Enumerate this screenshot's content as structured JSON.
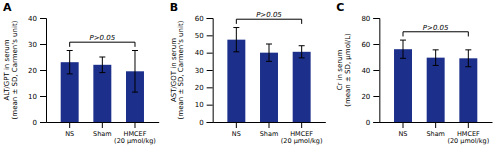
{
  "chart_data": [
    {
      "type": "bar",
      "title": "A",
      "ylabel": "ALT/GPT in serum\n(mean ± SD, Carmen's unit)",
      "categories": [
        "NS",
        "Sham",
        "HMCEF\n(20 μmol/kg)"
      ],
      "values": [
        23.0,
        22.0,
        19.5
      ],
      "errors": [
        4.5,
        3.0,
        8.0
      ],
      "color": "#1c2f8a",
      "ylim": [
        0,
        40
      ],
      "yticks": [
        0,
        10,
        20,
        30,
        40
      ],
      "annotations": [
        "P>0.05"
      ]
    },
    {
      "type": "bar",
      "title": "B",
      "ylabel": "AST/GOT in serum\n(mean ± SD, Carmen's unit)",
      "categories": [
        "NS",
        "Sham",
        "HMCEF\n(20 μmol/kg)"
      ],
      "values": [
        47.5,
        40.0,
        40.5
      ],
      "errors": [
        7.0,
        5.0,
        3.5
      ],
      "color": "#1c2f8a",
      "ylim": [
        0,
        60
      ],
      "yticks": [
        0,
        10,
        20,
        30,
        40,
        50,
        60
      ],
      "annotations": [
        "P>0.05"
      ]
    },
    {
      "type": "bar",
      "title": "C",
      "ylabel": "Cr in serum\n(mean ± SD, μmol/L)",
      "categories": [
        "NS",
        "Sham",
        "HMCEF\n(20 μmol/kg)"
      ],
      "values": [
        56.0,
        49.5,
        49.0
      ],
      "errors": [
        7.0,
        6.0,
        6.5
      ],
      "color": "#1c2f8a",
      "ylim": [
        0,
        80
      ],
      "yticks": [
        0,
        20,
        40,
        60,
        80
      ],
      "annotations": [
        "P>0.05"
      ]
    }
  ]
}
